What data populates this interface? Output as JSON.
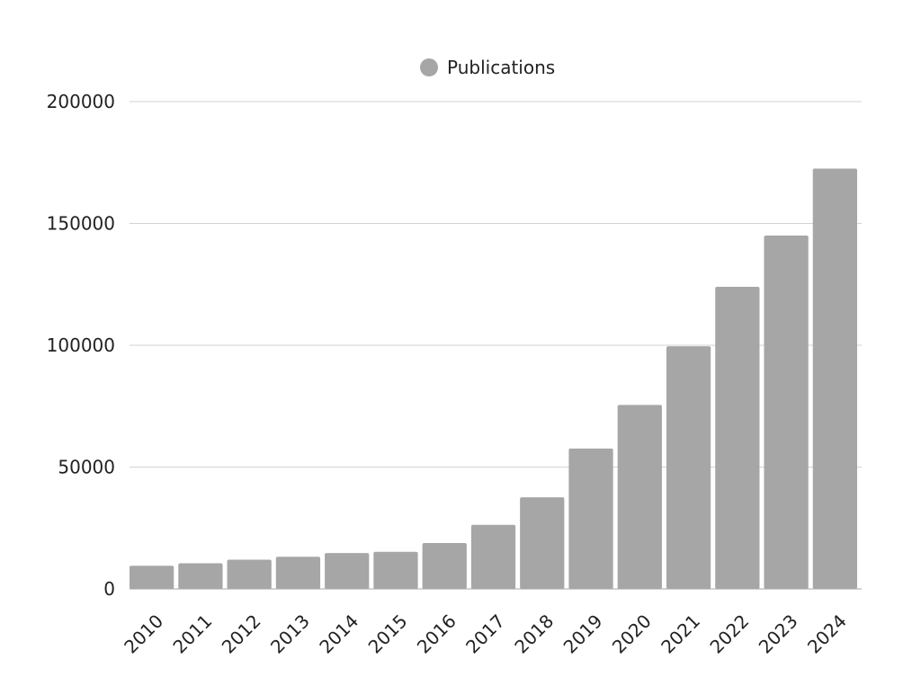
{
  "chart_data": {
    "type": "bar",
    "title": "",
    "xlabel": "",
    "ylabel": "",
    "categories": [
      "2010",
      "2011",
      "2012",
      "2013",
      "2014",
      "2015",
      "2016",
      "2017",
      "2018",
      "2019",
      "2020",
      "2021",
      "2022",
      "2023",
      "2024"
    ],
    "series": [
      {
        "name": "Publications",
        "color": "#a6a6a6",
        "values": [
          9500,
          10500,
          12000,
          13200,
          14700,
          15200,
          18800,
          26300,
          37600,
          57600,
          75500,
          99600,
          124000,
          145000,
          172500
        ]
      }
    ],
    "ylim": [
      0,
      200000
    ],
    "yticks": [
      "0",
      "50000",
      "100000",
      "150000",
      "200000"
    ],
    "grid": true,
    "legend_position": "top-center",
    "gridline_color": "#d3d3d3"
  }
}
